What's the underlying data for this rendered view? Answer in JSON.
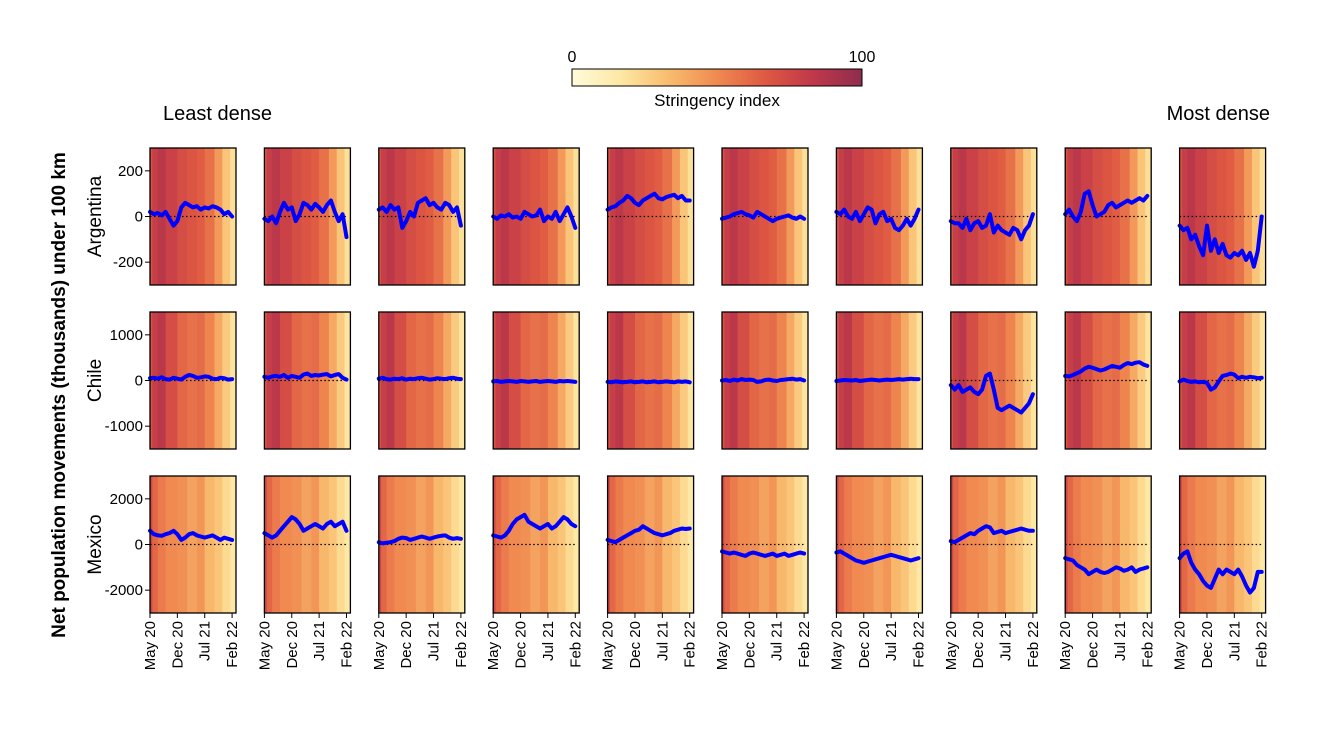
{
  "chart_data": {
    "type": "line",
    "ylabel": "Net population movements (thousands) under 100 km",
    "density_left": "Least dense",
    "density_right": "Most dense",
    "colorbar": {
      "label": "Stringency index",
      "min": 0,
      "max": 100,
      "min_label": "0",
      "max_label": "100",
      "colors": [
        "#fffbdc",
        "#fde7a3",
        "#f9bd6f",
        "#f08a50",
        "#de5842",
        "#c0384a",
        "#8e2d4c"
      ]
    },
    "x_tick_labels": [
      "May 20",
      "Dec 20",
      "Jul 21",
      "Feb 22"
    ],
    "x_tick_positions": [
      0,
      7,
      14,
      21
    ],
    "x_range": [
      0,
      22
    ],
    "line_color": "#0000ff",
    "zero_line": "dotted",
    "stringency_bands_x": [
      0,
      0.6,
      2,
      4,
      7,
      9.5,
      12,
      14,
      16.5,
      18.5,
      20.5,
      22
    ],
    "rows": [
      {
        "country": "Argentina",
        "ylim": [
          -300,
          300
        ],
        "yticks": [
          -200,
          0,
          200
        ],
        "ytick_labels": [
          "-200",
          "0",
          "200"
        ],
        "stringency": [
          70,
          80,
          85,
          78,
          72,
          68,
          65,
          58,
          45,
          30,
          20
        ],
        "x": [
          0,
          1,
          2,
          3,
          4,
          5,
          6,
          7,
          8,
          9,
          10,
          11,
          12,
          13,
          14,
          15,
          16,
          17,
          18,
          19,
          20,
          21
        ],
        "panels": [
          {
            "values": [
              20,
              10,
              15,
              5,
              20,
              -10,
              -40,
              -20,
              40,
              60,
              50,
              40,
              45,
              30,
              40,
              35,
              45,
              40,
              30,
              10,
              20,
              0
            ]
          },
          {
            "values": [
              -10,
              -20,
              0,
              -30,
              20,
              60,
              30,
              40,
              -20,
              10,
              60,
              50,
              30,
              55,
              40,
              20,
              50,
              70,
              20,
              -20,
              10,
              -90
            ]
          },
          {
            "values": [
              30,
              40,
              20,
              50,
              30,
              40,
              -50,
              -20,
              20,
              0,
              60,
              70,
              80,
              50,
              60,
              40,
              30,
              60,
              50,
              20,
              40,
              -40
            ]
          },
          {
            "values": [
              0,
              -10,
              5,
              0,
              10,
              -5,
              0,
              -10,
              20,
              10,
              0,
              5,
              30,
              -20,
              0,
              -10,
              20,
              -20,
              10,
              40,
              0,
              -50
            ]
          },
          {
            "values": [
              30,
              40,
              45,
              60,
              70,
              90,
              80,
              60,
              50,
              70,
              80,
              90,
              100,
              80,
              75,
              85,
              90,
              95,
              80,
              90,
              70,
              70
            ]
          },
          {
            "values": [
              -10,
              -5,
              0,
              10,
              15,
              20,
              10,
              5,
              -5,
              20,
              10,
              0,
              -10,
              -20,
              -10,
              -5,
              0,
              5,
              -5,
              -10,
              0,
              -10
            ]
          },
          {
            "values": [
              20,
              10,
              30,
              0,
              -10,
              20,
              -20,
              10,
              40,
              30,
              -30,
              10,
              20,
              -20,
              -10,
              -50,
              -60,
              -40,
              -10,
              -40,
              -10,
              30
            ]
          },
          {
            "values": [
              -20,
              -30,
              -30,
              -50,
              -10,
              -60,
              -30,
              -20,
              -50,
              -40,
              10,
              -70,
              -40,
              -60,
              -70,
              -80,
              -50,
              -60,
              -100,
              -60,
              -40,
              10
            ]
          },
          {
            "values": [
              10,
              30,
              0,
              -20,
              20,
              100,
              110,
              50,
              0,
              10,
              20,
              50,
              60,
              40,
              50,
              60,
              70,
              60,
              70,
              80,
              70,
              90
            ]
          },
          {
            "values": [
              -40,
              -60,
              -50,
              -100,
              -80,
              -130,
              -170,
              -40,
              -150,
              -100,
              -160,
              -120,
              -170,
              -180,
              -160,
              -170,
              -150,
              -190,
              -160,
              -220,
              -150,
              0
            ]
          }
        ]
      },
      {
        "country": "Chile",
        "ylim": [
          -1500,
          1500
        ],
        "yticks": [
          -1000,
          0,
          1000
        ],
        "ytick_labels": [
          "-1000",
          "0",
          "1000"
        ],
        "stringency": [
          70,
          80,
          85,
          72,
          62,
          58,
          60,
          52,
          40,
          28,
          18
        ],
        "x": [
          0,
          1,
          2,
          3,
          4,
          5,
          6,
          7,
          8,
          9,
          10,
          11,
          12,
          13,
          14,
          15,
          16,
          17,
          18,
          19,
          20,
          21
        ],
        "panels": [
          {
            "values": [
              50,
              60,
              40,
              70,
              30,
              20,
              60,
              40,
              20,
              80,
              120,
              100,
              60,
              70,
              90,
              80,
              40,
              30,
              60,
              50,
              20,
              30
            ]
          },
          {
            "values": [
              80,
              60,
              90,
              100,
              80,
              120,
              60,
              100,
              80,
              60,
              130,
              150,
              100,
              120,
              110,
              130,
              140,
              90,
              120,
              140,
              60,
              20
            ]
          },
          {
            "values": [
              40,
              60,
              30,
              20,
              40,
              30,
              50,
              20,
              40,
              30,
              50,
              60,
              40,
              20,
              30,
              50,
              40,
              30,
              50,
              60,
              40,
              30
            ]
          },
          {
            "values": [
              -20,
              -10,
              -30,
              -20,
              -10,
              -20,
              -30,
              -10,
              -20,
              -30,
              -20,
              -10,
              -30,
              -20,
              -10,
              -20,
              -30,
              -10,
              -20,
              -10,
              -20,
              -30
            ]
          },
          {
            "values": [
              -30,
              -40,
              -20,
              -30,
              -40,
              -30,
              -20,
              -40,
              -30,
              -20,
              -40,
              -30,
              -20,
              -40,
              -30,
              -20,
              -30,
              -40,
              -20,
              -30,
              -20,
              -40
            ]
          },
          {
            "values": [
              0,
              10,
              -10,
              20,
              0,
              30,
              10,
              20,
              10,
              -30,
              -20,
              10,
              20,
              0,
              -10,
              10,
              20,
              30,
              40,
              20,
              30,
              0
            ]
          },
          {
            "values": [
              -10,
              0,
              10,
              5,
              0,
              10,
              -10,
              0,
              10,
              20,
              10,
              0,
              10,
              20,
              10,
              20,
              30,
              20,
              30,
              40,
              30,
              30
            ]
          },
          {
            "values": [
              -100,
              -200,
              -100,
              -250,
              -200,
              -150,
              -250,
              -300,
              -200,
              100,
              150,
              -200,
              -600,
              -650,
              -600,
              -550,
              -600,
              -650,
              -700,
              -600,
              -500,
              -300
            ]
          },
          {
            "values": [
              100,
              90,
              120,
              160,
              200,
              260,
              300,
              280,
              250,
              220,
              240,
              280,
              320,
              300,
              280,
              340,
              380,
              360,
              390,
              400,
              350,
              320
            ]
          },
          {
            "values": [
              -20,
              20,
              -10,
              -30,
              -20,
              -40,
              -30,
              -50,
              -200,
              -150,
              -20,
              100,
              120,
              150,
              130,
              50,
              80,
              60,
              80,
              70,
              50,
              60
            ]
          }
        ]
      },
      {
        "country": "Mexico",
        "ylim": [
          -3000,
          3000
        ],
        "yticks": [
          -2000,
          0,
          2000
        ],
        "ytick_labels": [
          "-2000",
          "0",
          "2000"
        ],
        "stringency": [
          75,
          62,
          55,
          50,
          48,
          42,
          46,
          35,
          30,
          22,
          16
        ],
        "x": [
          0,
          1,
          2,
          3,
          4,
          5,
          6,
          7,
          8,
          9,
          10,
          11,
          12,
          13,
          14,
          15,
          16,
          17,
          18,
          19,
          20,
          21
        ],
        "panels": [
          {
            "values": [
              600,
              450,
              400,
              380,
              450,
              500,
              600,
              450,
              200,
              300,
              450,
              500,
              400,
              350,
              300,
              350,
              400,
              300,
              200,
              300,
              250,
              200
            ]
          },
          {
            "values": [
              500,
              400,
              300,
              400,
              600,
              800,
              1000,
              1200,
              1100,
              900,
              600,
              700,
              800,
              900,
              800,
              700,
              900,
              1000,
              800,
              900,
              1000,
              600
            ]
          },
          {
            "values": [
              100,
              50,
              80,
              100,
              150,
              250,
              300,
              280,
              200,
              250,
              300,
              350,
              300,
              250,
              300,
              350,
              380,
              400,
              300,
              250,
              280,
              250
            ]
          },
          {
            "values": [
              400,
              350,
              300,
              400,
              600,
              900,
              1100,
              1200,
              1300,
              1000,
              900,
              800,
              700,
              800,
              900,
              700,
              800,
              1000,
              1200,
              1100,
              900,
              800
            ]
          },
          {
            "values": [
              200,
              150,
              100,
              200,
              300,
              400,
              500,
              600,
              650,
              800,
              700,
              600,
              500,
              450,
              400,
              450,
              500,
              600,
              650,
              700,
              680,
              700
            ]
          },
          {
            "values": [
              -300,
              -350,
              -400,
              -350,
              -400,
              -450,
              -500,
              -400,
              -350,
              -400,
              -450,
              -500,
              -450,
              -400,
              -500,
              -450,
              -400,
              -500,
              -450,
              -400,
              -350,
              -400
            ]
          },
          {
            "values": [
              -350,
              -300,
              -400,
              -500,
              -600,
              -700,
              -750,
              -800,
              -750,
              -700,
              -650,
              -600,
              -550,
              -500,
              -450,
              -500,
              -550,
              -600,
              -650,
              -700,
              -650,
              -600
            ]
          },
          {
            "values": [
              150,
              100,
              200,
              300,
              400,
              500,
              450,
              600,
              700,
              800,
              750,
              500,
              550,
              600,
              500,
              550,
              600,
              650,
              700,
              650,
              600,
              600
            ]
          },
          {
            "values": [
              -600,
              -650,
              -700,
              -900,
              -1000,
              -1100,
              -1300,
              -1200,
              -1100,
              -1200,
              -1250,
              -1200,
              -1100,
              -1000,
              -1050,
              -1150,
              -1100,
              -1000,
              -1200,
              -1100,
              -1050,
              -1000
            ]
          },
          {
            "values": [
              -600,
              -400,
              -300,
              -800,
              -1100,
              -1300,
              -1600,
              -1800,
              -1900,
              -1500,
              -1100,
              -1300,
              -1100,
              -1200,
              -1300,
              -1100,
              -1400,
              -1800,
              -2100,
              -1900,
              -1200,
              -1200
            ]
          }
        ]
      }
    ]
  }
}
